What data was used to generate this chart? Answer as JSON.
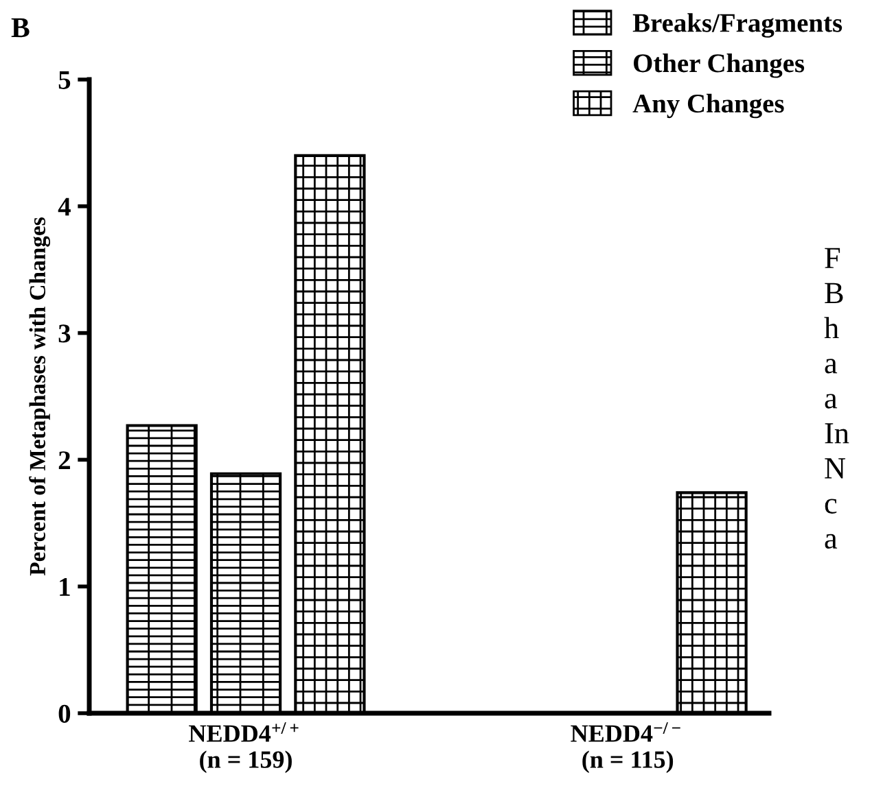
{
  "chart_data": {
    "type": "bar",
    "categories": [
      "NEDD4$^{+/+}$\n(n = 159)",
      "NEDD4$^{−/−}$\n(n = 115)"
    ],
    "ylabel": "Percent of Metaphases with Changes",
    "series": [
      {
        "name": "Breaks/Fragments",
        "color": "#000000",
        "values": [
          2.27,
          0
        ]
      },
      {
        "name": "Other Changes",
        "color": "#000000",
        "values": [
          1.89,
          0
        ]
      },
      {
        "name": "Any Changes",
        "color": "#000000",
        "values": [
          4.4,
          1.74
        ]
      }
    ],
    "ylim": [
      0,
      5
    ],
    "yticks": [
      0,
      1,
      2,
      3,
      4,
      5
    ],
    "grid": false,
    "legend": "top right",
    "annotations": [
      "B",
      "F\nB\nh\na\na\nIn\nN\nc\na"
    ]
  }
}
